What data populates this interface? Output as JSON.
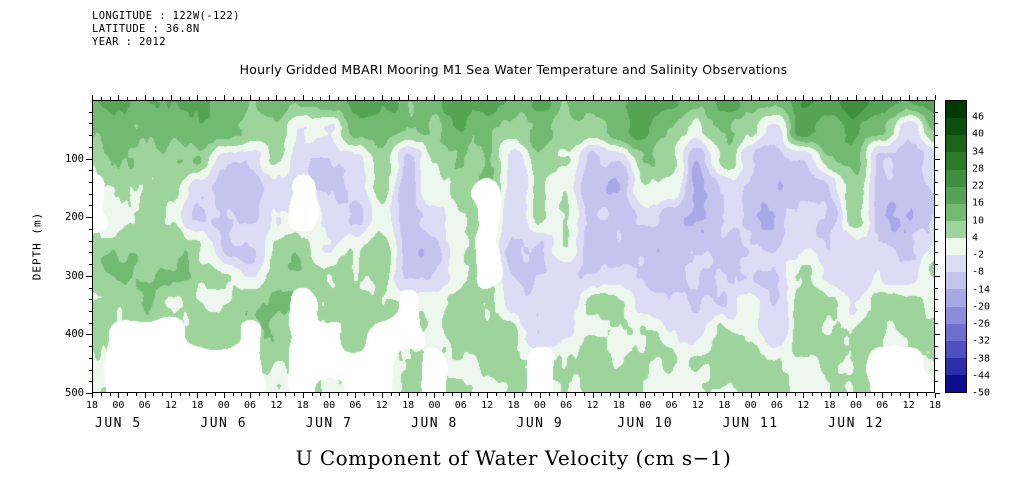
{
  "header": {
    "longitude": "LONGITUDE : 122W(-122)",
    "latitude": "LATITUDE : 36.8N",
    "year": "YEAR : 2012"
  },
  "title": "Hourly Gridded MBARI Mooring M1 Sea Water Temperature and Salinity Observations",
  "xlabel": "U Component of Water Velocity (cm s−1)",
  "ylabel": "DEPTH (m)",
  "colors": {
    "axis": "#000000",
    "background": "#ffffff",
    "missing": "#ffffff"
  },
  "chart_data": {
    "type": "heatmap",
    "title": "Hourly Gridded MBARI Mooring M1 Sea Water Temperature and Salinity Observations",
    "variable": "U Component of Water Velocity",
    "units": "cm s-1",
    "x_axis": {
      "tick_interval_hours": 6,
      "tick_labels": [
        "18",
        "00",
        "06",
        "12",
        "18",
        "00",
        "06",
        "12",
        "18",
        "00",
        "06",
        "12",
        "18",
        "00",
        "06",
        "12",
        "18",
        "00",
        "06",
        "12",
        "18",
        "00",
        "06",
        "12",
        "18",
        "00",
        "06",
        "12",
        "18",
        "00",
        "06",
        "12",
        "18"
      ],
      "day_labels": [
        "JUN 5",
        "JUN 6",
        "JUN 7",
        "JUN 8",
        "JUN 9",
        "JUN 10",
        "JUN 11",
        "JUN 12"
      ]
    },
    "y_axis": {
      "label": "DEPTH (m)",
      "range": [
        0,
        500
      ],
      "reversed": true,
      "ticks": [
        100,
        200,
        300,
        400,
        500
      ],
      "minor_step": 20
    },
    "colorbar": {
      "levels": [
        46,
        40,
        34,
        28,
        22,
        16,
        10,
        4,
        -2,
        -8,
        -14,
        -20,
        -26,
        -32,
        -38,
        -44,
        -50
      ],
      "labels": [
        "46",
        "40",
        "34",
        "28",
        "22",
        "16",
        "10",
        "4",
        "-2",
        "-8",
        "-14",
        "-20",
        "-26",
        "-32",
        "-38",
        "-44",
        "-50"
      ],
      "band_colors": [
        "#003a00",
        "#0c4f0c",
        "#1a641a",
        "#2a7a2a",
        "#3d8f3d",
        "#55a455",
        "#72b972",
        "#9cd49c",
        "#eef7ee",
        "#dcdcf5",
        "#c4c4ef",
        "#a8a8e6",
        "#8c8cdb",
        "#6e6ecf",
        "#4f4fc0",
        "#2d2dab",
        "#0d0d8e"
      ]
    },
    "field": {
      "comment": "Approximate gridded values (cm/s) read from the contour fill; null = missing data (white). Rows = depths, cols = 6-hourly times from JUN 4 18:00 to JUN 12 18:00.",
      "depths": [
        0,
        50,
        100,
        150,
        200,
        250,
        300,
        350,
        400,
        450,
        500
      ],
      "time_cols": 33,
      "values": [
        [
          14,
          16,
          18,
          20,
          22,
          16,
          12,
          14,
          10,
          12,
          18,
          16,
          12,
          14,
          20,
          16,
          12,
          18,
          14,
          10,
          14,
          24,
          18,
          12,
          16,
          14,
          10,
          22,
          16,
          26,
          18,
          12,
          16
        ],
        [
          10,
          12,
          14,
          15,
          16,
          10,
          6,
          8,
          -5,
          -6,
          12,
          10,
          8,
          10,
          16,
          12,
          8,
          14,
          10,
          6,
          10,
          18,
          12,
          6,
          10,
          8,
          -6,
          16,
          10,
          18,
          12,
          -8,
          10
        ],
        [
          6,
          8,
          10,
          10,
          10,
          -6,
          -8,
          5,
          -8,
          -8,
          -6,
          6,
          -8,
          6,
          12,
          8,
          -4,
          10,
          6,
          -10,
          -6,
          12,
          8,
          -10,
          6,
          -8,
          -10,
          -8,
          6,
          12,
          -10,
          -12,
          -6
        ],
        [
          null,
          5,
          6,
          6,
          -5,
          -10,
          -12,
          -6,
          null,
          -10,
          -8,
          5,
          -10,
          5,
          8,
          null,
          -8,
          6,
          5,
          -12,
          -10,
          6,
          5,
          -14,
          -8,
          -12,
          -14,
          -10,
          -8,
          8,
          -12,
          -14,
          -8
        ],
        [
          null,
          4,
          6,
          5,
          -6,
          -8,
          -10,
          -5,
          null,
          -6,
          -6,
          4,
          -12,
          -6,
          6,
          null,
          -10,
          5,
          4,
          -10,
          -8,
          -6,
          -8,
          -14,
          -10,
          -10,
          -12,
          -6,
          -10,
          6,
          -10,
          -12,
          -6
        ],
        [
          6,
          6,
          8,
          7,
          5,
          -5,
          -6,
          4,
          5,
          -4,
          5,
          6,
          -10,
          -8,
          5,
          null,
          -8,
          -6,
          5,
          -8,
          -6,
          -8,
          -10,
          -12,
          -8,
          -8,
          -10,
          -5,
          -8,
          -6,
          -8,
          -10,
          -5
        ],
        [
          7,
          7,
          9,
          8,
          8,
          6,
          -4,
          6,
          7,
          5,
          6,
          7,
          -8,
          -6,
          6,
          null,
          -6,
          -8,
          -5,
          -6,
          -5,
          -6,
          -8,
          -10,
          -6,
          -6,
          -8,
          5,
          -6,
          -8,
          -6,
          -8,
          5
        ],
        [
          6,
          5,
          6,
          5,
          6,
          7,
          5,
          8,
          null,
          6,
          5,
          6,
          null,
          5,
          7,
          5,
          -5,
          -6,
          -6,
          5,
          6,
          -5,
          -6,
          -8,
          -5,
          5,
          -6,
          6,
          5,
          -6,
          5,
          6,
          6
        ],
        [
          5,
          null,
          null,
          null,
          4,
          5,
          null,
          6,
          null,
          null,
          4,
          null,
          null,
          4,
          6,
          4,
          5,
          -5,
          -5,
          4,
          5,
          4,
          -5,
          -6,
          4,
          4,
          -5,
          5,
          4,
          5,
          4,
          5,
          5
        ],
        [
          4,
          null,
          null,
          null,
          null,
          null,
          null,
          5,
          null,
          null,
          null,
          null,
          4,
          null,
          5,
          4,
          4,
          null,
          4,
          4,
          4,
          5,
          4,
          4,
          5,
          4,
          4,
          4,
          5,
          4,
          null,
          null,
          4
        ],
        [
          4,
          null,
          null,
          null,
          null,
          null,
          null,
          4,
          null,
          4,
          null,
          null,
          4,
          null,
          4,
          4,
          4,
          null,
          4,
          4,
          4,
          4,
          4,
          4,
          4,
          4,
          4,
          4,
          4,
          4,
          null,
          null,
          null
        ]
      ]
    }
  }
}
